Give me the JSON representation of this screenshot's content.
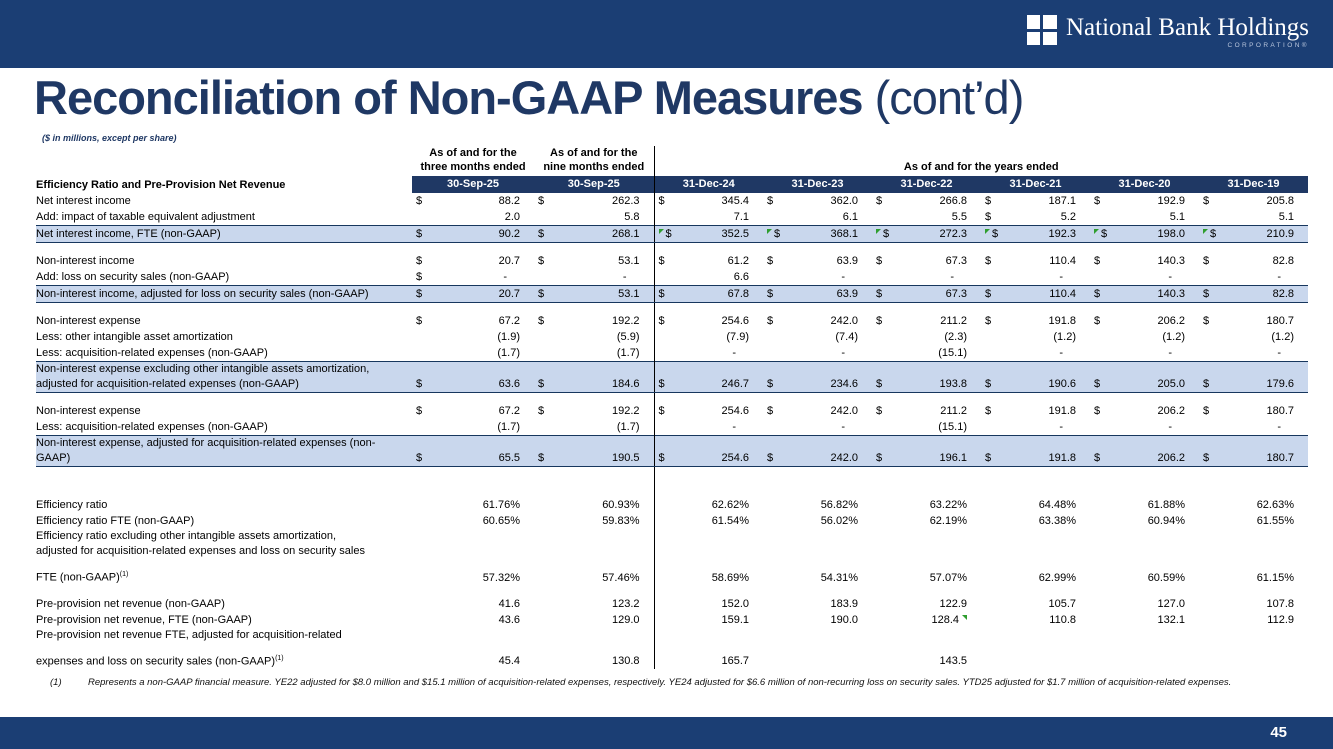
{
  "banner": {
    "logo_text": "National Bank Holdings",
    "logo_subtext": "CORPORATION®"
  },
  "title": {
    "main": "Reconciliation of Non-GAAP Measures",
    "suffix": " (cont’d)",
    "note": "($ in millions, except per share)"
  },
  "colors": {
    "banner_navy": "#1B3E74",
    "table_header_navy": "#1F3864",
    "highlight_blue": "#C9D7ED",
    "title_navy": "#1F3864",
    "flag_green": "#2F9E2F"
  },
  "table": {
    "group_headers": {
      "three_months_l1": "As of and for the",
      "three_months_l2": "three months ended",
      "nine_months_l1": "As of and for the",
      "nine_months_l2": "nine months ended",
      "years": "As of and for the years ended"
    },
    "label_header": "Efficiency Ratio and Pre-Provision Net Revenue",
    "date_headers": [
      "30-Sep-25",
      "30-Sep-25",
      "31-Dec-24",
      "31-Dec-23",
      "31-Dec-22",
      "31-Dec-21",
      "31-Dec-20",
      "31-Dec-19"
    ],
    "rows": [
      {
        "t": "d",
        "label": "Net interest income",
        "cells": [
          [
            "$",
            "88.2"
          ],
          [
            "$",
            "262.3"
          ],
          [
            "$",
            "345.4"
          ],
          [
            "$",
            "362.0"
          ],
          [
            "$",
            "266.8"
          ],
          [
            "$",
            "187.1"
          ],
          [
            "$",
            "192.9"
          ],
          [
            "$",
            "205.8"
          ]
        ]
      },
      {
        "t": "d",
        "label": "Add: impact of taxable equivalent adjustment",
        "cells": [
          [
            "",
            "2.0"
          ],
          [
            "",
            "5.8"
          ],
          [
            "",
            "7.1"
          ],
          [
            "",
            "6.1"
          ],
          [
            "",
            "5.5"
          ],
          [
            "$",
            "5.2"
          ],
          [
            "",
            "5.1"
          ],
          [
            "",
            "5.1"
          ]
        ]
      },
      {
        "t": "h",
        "label": "Net interest income, FTE (non-GAAP)",
        "cells": [
          [
            "$",
            "90.2"
          ],
          [
            "$",
            "268.1"
          ],
          [
            "$",
            "352.5",
            "g"
          ],
          [
            "$",
            "368.1",
            "g"
          ],
          [
            "$",
            "272.3",
            "g"
          ],
          [
            "$",
            "192.3",
            "g"
          ],
          [
            "$",
            "198.0",
            "g"
          ],
          [
            "$",
            "210.9",
            "g"
          ]
        ]
      },
      {
        "t": "sp",
        "h": 10
      },
      {
        "t": "d",
        "label": "Non-interest income",
        "cells": [
          [
            "$",
            "20.7"
          ],
          [
            "$",
            "53.1"
          ],
          [
            "$",
            "61.2"
          ],
          [
            "$",
            "63.9"
          ],
          [
            "$",
            "67.3"
          ],
          [
            "$",
            "110.4"
          ],
          [
            "$",
            "140.3"
          ],
          [
            "$",
            "82.8"
          ]
        ]
      },
      {
        "t": "d",
        "label": "Add: loss on security sales (non-GAAP)",
        "cells": [
          [
            "$",
            "-"
          ],
          [
            "",
            "-"
          ],
          [
            "",
            "6.6"
          ],
          [
            "",
            "-"
          ],
          [
            "",
            "-"
          ],
          [
            "",
            "-"
          ],
          [
            "",
            "-"
          ],
          [
            "",
            "-"
          ]
        ]
      },
      {
        "t": "h",
        "label": "Non-interest income, adjusted for loss on security sales (non-GAAP)",
        "cells": [
          [
            "$",
            "20.7"
          ],
          [
            "$",
            "53.1"
          ],
          [
            "$",
            "67.8"
          ],
          [
            "$",
            "63.9"
          ],
          [
            "$",
            "67.3"
          ],
          [
            "$",
            "110.4"
          ],
          [
            "$",
            "140.3"
          ],
          [
            "$",
            "82.8"
          ]
        ]
      },
      {
        "t": "sp",
        "h": 10
      },
      {
        "t": "d",
        "label": "Non-interest expense",
        "cells": [
          [
            "$",
            "67.2"
          ],
          [
            "$",
            "192.2"
          ],
          [
            "$",
            "254.6"
          ],
          [
            "$",
            "242.0"
          ],
          [
            "$",
            "211.2"
          ],
          [
            "$",
            "191.8"
          ],
          [
            "$",
            "206.2"
          ],
          [
            "$",
            "180.7"
          ]
        ]
      },
      {
        "t": "d",
        "label": "Less: other intangible asset amortization",
        "cells": [
          [
            "",
            "(1.9)"
          ],
          [
            "",
            "(5.9)"
          ],
          [
            "",
            "(7.9)"
          ],
          [
            "",
            "(7.4)"
          ],
          [
            "",
            "(2.3)"
          ],
          [
            "",
            "(1.2)"
          ],
          [
            "",
            "(1.2)"
          ],
          [
            "",
            "(1.2)"
          ]
        ]
      },
      {
        "t": "d",
        "label": "Less: acquisition-related expenses (non-GAAP)",
        "cells": [
          [
            "",
            "(1.7)"
          ],
          [
            "",
            "(1.7)"
          ],
          [
            "",
            "-"
          ],
          [
            "",
            "-"
          ],
          [
            "",
            "(15.1)"
          ],
          [
            "",
            "-"
          ],
          [
            "",
            "-"
          ],
          [
            "",
            "-"
          ]
        ]
      },
      {
        "t": "h",
        "label_lines": [
          "Non-interest expense excluding other intangible assets amortization,",
          "adjusted for acquisition-related expenses (non-GAAP)"
        ],
        "cells": [
          [
            "$",
            "63.6"
          ],
          [
            "$",
            "184.6"
          ],
          [
            "$",
            "246.7"
          ],
          [
            "$",
            "234.6"
          ],
          [
            "$",
            "193.8"
          ],
          [
            "$",
            "190.6"
          ],
          [
            "$",
            "205.0"
          ],
          [
            "$",
            "179.6"
          ]
        ]
      },
      {
        "t": "sp",
        "h": 10
      },
      {
        "t": "d",
        "label": "Non-interest expense",
        "cells": [
          [
            "$",
            "67.2"
          ],
          [
            "$",
            "192.2"
          ],
          [
            "$",
            "254.6"
          ],
          [
            "$",
            "242.0"
          ],
          [
            "$",
            "211.2"
          ],
          [
            "$",
            "191.8"
          ],
          [
            "$",
            "206.2"
          ],
          [
            "$",
            "180.7"
          ]
        ]
      },
      {
        "t": "d",
        "label": "Less: acquisition-related expenses (non-GAAP)",
        "cells": [
          [
            "",
            "(1.7)"
          ],
          [
            "",
            "(1.7)"
          ],
          [
            "",
            "-"
          ],
          [
            "",
            "-"
          ],
          [
            "",
            "(15.1)"
          ],
          [
            "",
            "-"
          ],
          [
            "",
            "-"
          ],
          [
            "",
            "-"
          ]
        ]
      },
      {
        "t": "h",
        "label_lines": [
          "Non-interest expense, adjusted for acquisition-related expenses (non-",
          "GAAP)"
        ],
        "cells": [
          [
            "$",
            "65.5"
          ],
          [
            "$",
            "190.5"
          ],
          [
            "$",
            "254.6"
          ],
          [
            "$",
            "242.0"
          ],
          [
            "$",
            "196.1"
          ],
          [
            "$",
            "191.8"
          ],
          [
            "$",
            "206.2"
          ],
          [
            "$",
            "180.7"
          ]
        ]
      },
      {
        "t": "sp",
        "h": 30
      },
      {
        "t": "d",
        "label": "Efficiency ratio",
        "cells": [
          [
            "",
            "61.76%"
          ],
          [
            "",
            "60.93%"
          ],
          [
            "",
            "62.62%"
          ],
          [
            "",
            "56.82%"
          ],
          [
            "",
            "63.22%"
          ],
          [
            "",
            "64.48%"
          ],
          [
            "",
            "61.88%"
          ],
          [
            "",
            "62.63%"
          ]
        ]
      },
      {
        "t": "d",
        "label": "Efficiency ratio FTE (non-GAAP)",
        "cells": [
          [
            "",
            "60.65%"
          ],
          [
            "",
            "59.83%"
          ],
          [
            "",
            "61.54%"
          ],
          [
            "",
            "56.02%"
          ],
          [
            "",
            "62.19%"
          ],
          [
            "",
            "63.38%"
          ],
          [
            "",
            "60.94%"
          ],
          [
            "",
            "61.55%"
          ]
        ]
      },
      {
        "t": "d",
        "label_lines": [
          "Efficiency ratio excluding other intangible assets amortization,",
          "adjusted for acquisition-related expenses and loss on security sales",
          "FTE (non-GAAP)"
        ],
        "sup": "(1)",
        "gap": true,
        "cells": [
          [
            "",
            "57.32%"
          ],
          [
            "",
            "57.46%"
          ],
          [
            "",
            "58.69%"
          ],
          [
            "",
            "54.31%"
          ],
          [
            "",
            "57.07%"
          ],
          [
            "",
            "62.99%"
          ],
          [
            "",
            "60.59%"
          ],
          [
            "",
            "61.15%"
          ]
        ]
      },
      {
        "t": "sp",
        "h": 10
      },
      {
        "t": "d",
        "label": "Pre-provision net revenue (non-GAAP)",
        "cells": [
          [
            "",
            "41.6"
          ],
          [
            "",
            "123.2"
          ],
          [
            "",
            "152.0"
          ],
          [
            "",
            "183.9"
          ],
          [
            "",
            "122.9"
          ],
          [
            "",
            "105.7"
          ],
          [
            "",
            "127.0"
          ],
          [
            "",
            "107.8"
          ]
        ]
      },
      {
        "t": "d",
        "label": "Pre-provision net revenue, FTE (non-GAAP)",
        "cells": [
          [
            "",
            "43.6"
          ],
          [
            "",
            "129.0"
          ],
          [
            "",
            "159.1"
          ],
          [
            "",
            "190.0"
          ],
          [
            "",
            "128.4",
            "gp"
          ],
          [
            "",
            "110.8"
          ],
          [
            "",
            "132.1"
          ],
          [
            "",
            "112.9"
          ]
        ]
      },
      {
        "t": "d",
        "label_lines": [
          "Pre-provision net revenue FTE, adjusted for acquisition-related",
          "expenses and loss on security sales (non-GAAP)"
        ],
        "sup": "(1)",
        "gap": true,
        "cells": [
          [
            "",
            "45.4"
          ],
          [
            "",
            "130.8"
          ],
          [
            "",
            "165.7"
          ],
          null,
          [
            "",
            "143.5"
          ],
          null,
          null,
          null
        ]
      }
    ]
  },
  "footnote": {
    "num": "(1)",
    "text": "Represents a non-GAAP financial measure. YE22 adjusted for $8.0 million and $15.1 million of acquisition-related expenses, respectively. YE24 adjusted for $6.6 million of non-recurring loss on security sales. YTD25 adjusted for $1.7 million of acquisition-related expenses."
  },
  "footer": {
    "page_number": "45"
  }
}
